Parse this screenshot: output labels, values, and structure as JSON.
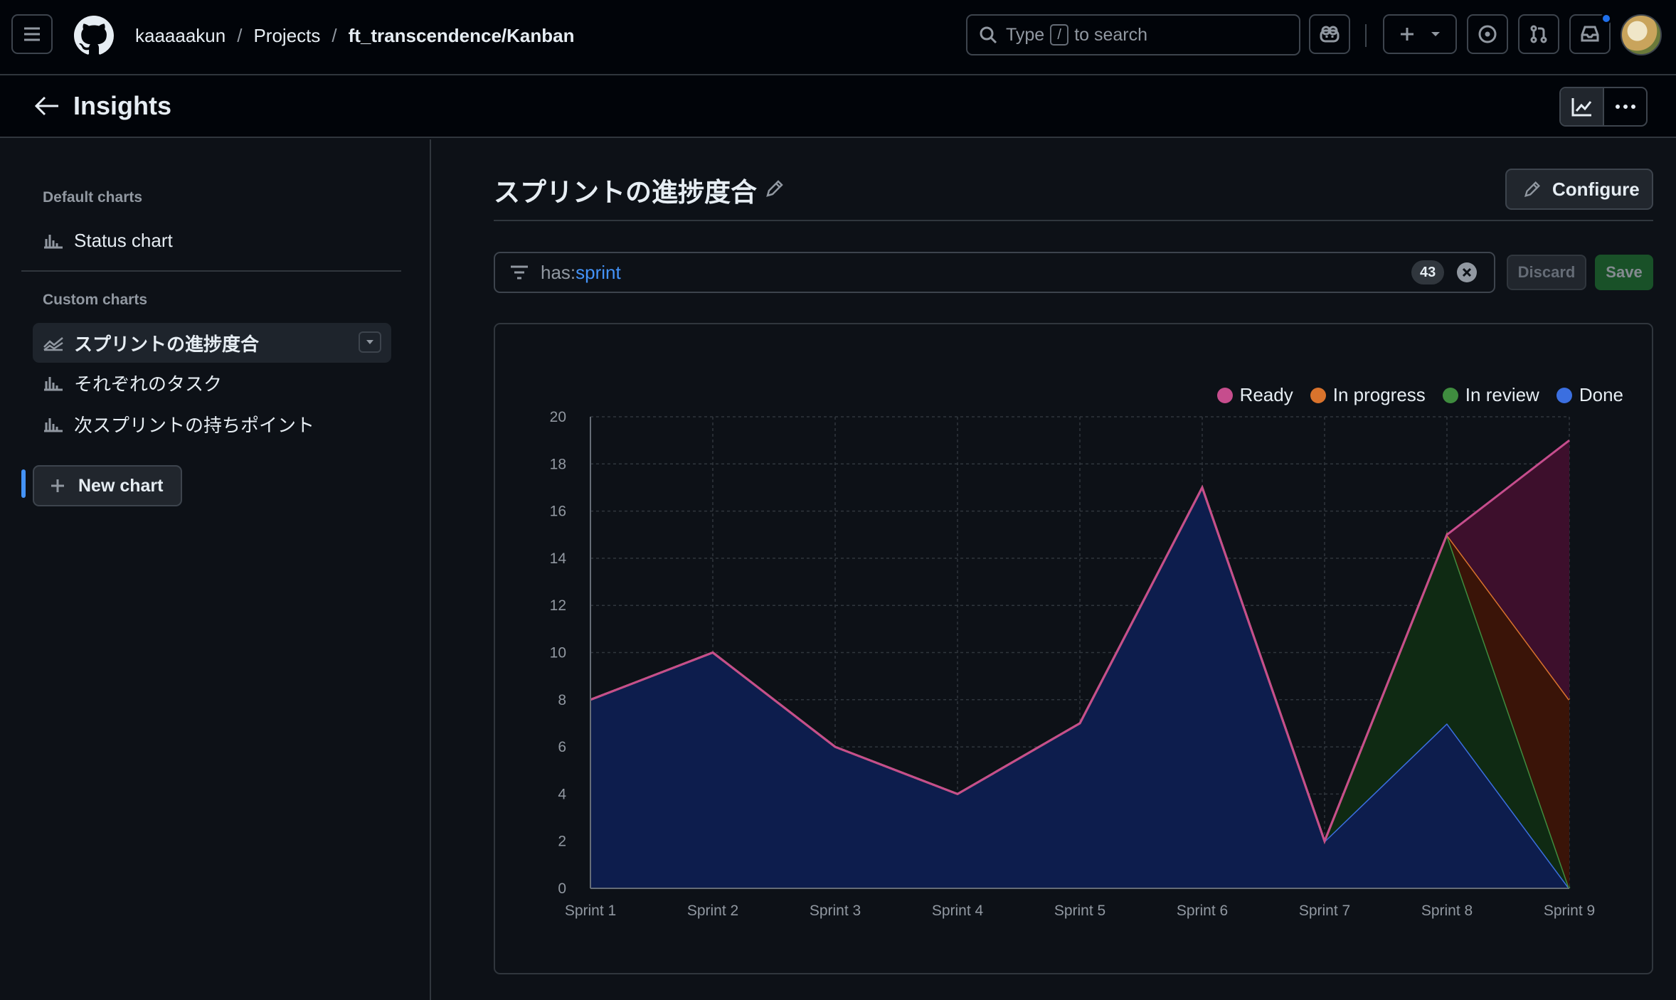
{
  "header": {
    "breadcrumb": {
      "user": "kaaaaakun",
      "sep1": "/",
      "projects": "Projects",
      "sep2": "/",
      "project": "ft_transcendence/Kanban"
    },
    "search": {
      "prefix": "Type",
      "slash": "/",
      "suffix": "to search"
    }
  },
  "subheader": {
    "title": "Insights"
  },
  "sidebar": {
    "default_title": "Default charts",
    "default_items": [
      {
        "label": "Status chart",
        "icon": "bar-chart-icon"
      }
    ],
    "custom_title": "Custom charts",
    "custom_items": [
      {
        "label": "スプリントの進捗度合",
        "icon": "area-chart-icon",
        "active": true
      },
      {
        "label": "それぞれのタスク",
        "icon": "bar-chart-icon"
      },
      {
        "label": "次スプリントの持ちポイント",
        "icon": "bar-chart-icon"
      }
    ],
    "new_chart_label": "New chart"
  },
  "main": {
    "title": "スプリントの進捗度合",
    "configure_label": "Configure",
    "filter": {
      "key": "has:",
      "value": "sprint",
      "count": "43"
    },
    "discard_label": "Discard",
    "save_label": "Save"
  },
  "colors": {
    "ready": "#c64d8d",
    "in_progress": "#d9732c",
    "in_review": "#3f8c3f",
    "done": "#3b6fe0"
  },
  "chart_data": {
    "type": "area",
    "stacked": true,
    "categories": [
      "Sprint 1",
      "Sprint 2",
      "Sprint 3",
      "Sprint 4",
      "Sprint 5",
      "Sprint 6",
      "Sprint 7",
      "Sprint 8",
      "Sprint 9"
    ],
    "series": [
      {
        "name": "Done",
        "values": [
          8,
          10,
          6,
          4,
          7,
          17,
          2,
          7,
          0
        ]
      },
      {
        "name": "In review",
        "values": [
          0,
          0,
          0,
          0,
          0,
          0,
          0,
          8,
          0
        ]
      },
      {
        "name": "In progress",
        "values": [
          0,
          0,
          0,
          0,
          0,
          0,
          0,
          0,
          8
        ]
      },
      {
        "name": "Ready",
        "values": [
          0,
          0,
          0,
          0,
          0,
          0,
          0,
          0,
          11
        ]
      }
    ],
    "legend_order": [
      "Ready",
      "In progress",
      "In review",
      "Done"
    ],
    "ylim": [
      0,
      20
    ],
    "yticks": [
      0,
      2,
      4,
      6,
      8,
      10,
      12,
      14,
      16,
      18,
      20
    ],
    "grid": true,
    "legend_position": "top-right"
  }
}
